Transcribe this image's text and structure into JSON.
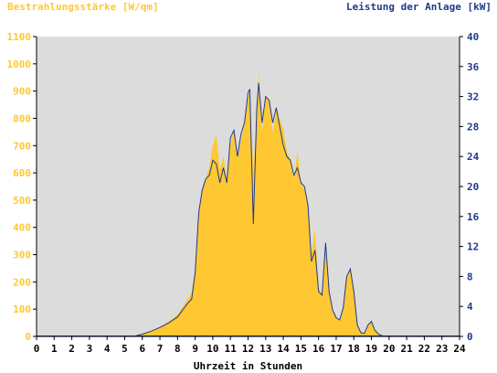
{
  "chart_data": {
    "type": "area",
    "left_axis_title": "Bestrahlungsstärke [W/qm]",
    "right_axis_title": "Leistung der Anlage [kW]",
    "xlabel": "Uhrzeit in Stunden",
    "x_ticks": [
      "0",
      "1",
      "2",
      "3",
      "4",
      "5",
      "6",
      "7",
      "8",
      "9",
      "10",
      "11",
      "12",
      "13",
      "14",
      "15",
      "16",
      "17",
      "18",
      "19",
      "20",
      "21",
      "22",
      "23",
      "24"
    ],
    "ylim": [
      0,
      1100
    ],
    "y_ticks": [
      "0",
      "100",
      "200",
      "300",
      "400",
      "500",
      "600",
      "700",
      "800",
      "900",
      "1000",
      "1100"
    ],
    "y2lim": [
      0,
      40
    ],
    "y2_ticks": [
      "0",
      "4",
      "8",
      "12",
      "16",
      "20",
      "24",
      "28",
      "32",
      "36",
      "40"
    ],
    "colors": {
      "plot_background": "#dcdcdc",
      "irradiance": "#ffc832",
      "power": "#1e3a8a",
      "left_axis_text": "#ffc832",
      "right_axis_text": "#1e3a8a",
      "x_axis_text": "#000000"
    },
    "series": [
      {
        "axis": "left",
        "style": "filled-area",
        "x": [
          5.5,
          6.0,
          6.5,
          7.0,
          7.5,
          8.0,
          8.5,
          8.8,
          9.0,
          9.2,
          9.4,
          9.6,
          9.8,
          10.0,
          10.2,
          10.4,
          10.6,
          10.8,
          11.0,
          11.2,
          11.4,
          11.6,
          11.8,
          12.0,
          12.1,
          12.3,
          12.5,
          12.6,
          12.8,
          13.0,
          13.2,
          13.4,
          13.6,
          13.8,
          14.0,
          14.2,
          14.4,
          14.6,
          14.8,
          15.0,
          15.2,
          15.4,
          15.6,
          15.8,
          16.0,
          16.2,
          16.4,
          16.6,
          16.8,
          17.0,
          17.2,
          17.4,
          17.6,
          17.8,
          18.0,
          18.2,
          18.4,
          18.6,
          18.8,
          19.0,
          19.2,
          19.4,
          19.6,
          19.8
        ],
        "values": [
          0,
          10,
          20,
          35,
          55,
          80,
          130,
          160,
          250,
          450,
          540,
          580,
          620,
          700,
          740,
          610,
          660,
          580,
          700,
          760,
          650,
          720,
          780,
          870,
          900,
          600,
          820,
          970,
          750,
          880,
          860,
          750,
          830,
          800,
          760,
          680,
          650,
          570,
          680,
          560,
          540,
          480,
          300,
          400,
          180,
          150,
          350,
          170,
          90,
          70,
          60,
          100,
          220,
          240,
          170,
          40,
          15,
          10,
          40,
          55,
          20,
          10,
          5,
          0
        ]
      },
      {
        "name": "",
        "axis": "right",
        "style": "line",
        "x": [
          5.5,
          6.0,
          6.5,
          7.0,
          7.5,
          8.0,
          8.5,
          8.8,
          9.0,
          9.2,
          9.4,
          9.6,
          9.8,
          10.0,
          10.2,
          10.4,
          10.6,
          10.8,
          11.0,
          11.2,
          11.4,
          11.6,
          11.8,
          12.0,
          12.1,
          12.3,
          12.5,
          12.6,
          12.8,
          13.0,
          13.2,
          13.4,
          13.6,
          13.8,
          14.0,
          14.2,
          14.4,
          14.6,
          14.8,
          15.0,
          15.2,
          15.4,
          15.6,
          15.8,
          16.0,
          16.2,
          16.4,
          16.6,
          16.8,
          17.0,
          17.2,
          17.4,
          17.6,
          17.8,
          18.0,
          18.2,
          18.4,
          18.6,
          18.8,
          19.0,
          19.2,
          19.4,
          19.6,
          19.8
        ],
        "values": [
          0,
          0.3,
          0.7,
          1.2,
          1.8,
          2.6,
          4.2,
          5.0,
          8.5,
          16.5,
          19.5,
          21,
          21.5,
          23.5,
          23.0,
          20.5,
          22.5,
          20.5,
          26.5,
          27.5,
          24.0,
          27.0,
          28.5,
          32.5,
          33.0,
          15.0,
          30.5,
          33.8,
          28.5,
          32.0,
          31.5,
          28.5,
          30.5,
          28.0,
          25.5,
          24.0,
          23.5,
          21.5,
          22.5,
          20.5,
          20.0,
          17.5,
          10.0,
          11.5,
          6.0,
          5.5,
          12.5,
          6.0,
          3.5,
          2.5,
          2.2,
          3.8,
          8.0,
          9.0,
          6.0,
          1.5,
          0.5,
          0.4,
          1.5,
          2.0,
          0.8,
          0.3,
          0.1,
          0
        ]
      }
    ]
  }
}
